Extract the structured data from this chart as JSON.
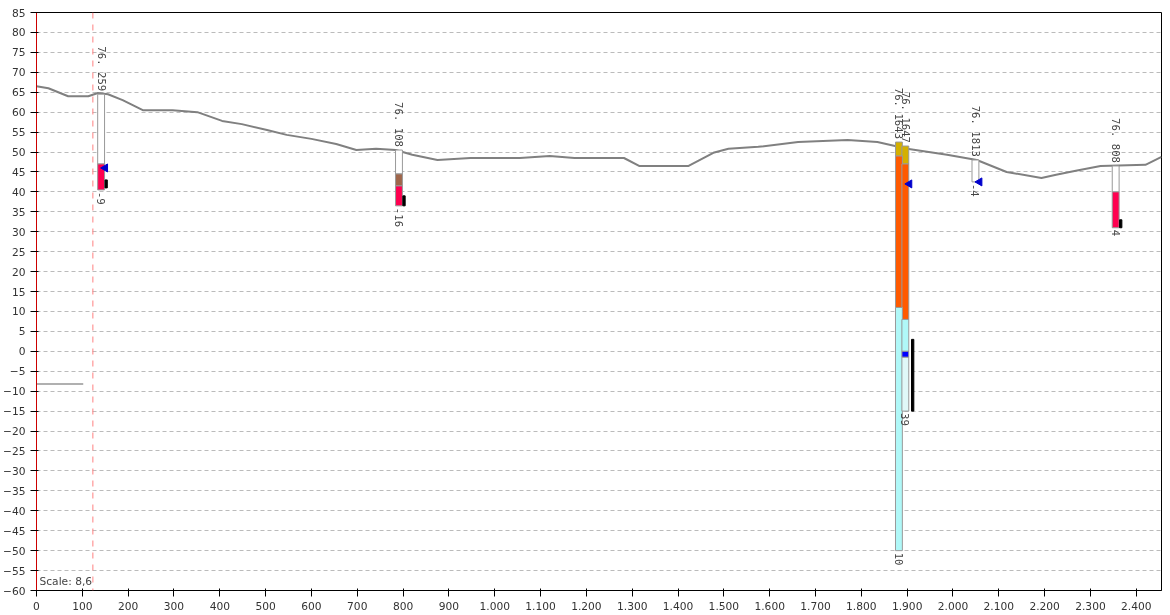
{
  "chart_data": {
    "type": "line",
    "xlim": [
      0,
      2455
    ],
    "ylim": [
      -60,
      85
    ],
    "xticks": [
      0,
      100,
      200,
      300,
      400,
      500,
      600,
      700,
      800,
      900,
      {
        "value": 1000,
        "label": "1.000"
      },
      {
        "value": 1100,
        "label": "1.100"
      },
      {
        "value": 1200,
        "label": "1.200"
      },
      {
        "value": 1300,
        "label": "1.300"
      },
      {
        "value": 1400,
        "label": "1.400"
      },
      {
        "value": 1500,
        "label": "1.500"
      },
      {
        "value": 1600,
        "label": "1.600"
      },
      {
        "value": 1700,
        "label": "1.700"
      },
      {
        "value": 1800,
        "label": "1.800"
      },
      {
        "value": 1900,
        "label": "1.900"
      },
      {
        "value": 2000,
        "label": "2.000"
      },
      {
        "value": 2100,
        "label": "2.100"
      },
      {
        "value": 2200,
        "label": "2.200"
      },
      {
        "value": 2300,
        "label": "2.300"
      },
      {
        "value": 2400,
        "label": "2.400"
      }
    ],
    "yticks": [
      -60,
      -55,
      -50,
      -45,
      -40,
      -35,
      -30,
      -25,
      -20,
      -15,
      -10,
      -5,
      0,
      5,
      10,
      15,
      20,
      25,
      30,
      35,
      40,
      45,
      50,
      55,
      60,
      65,
      70,
      75,
      80,
      85
    ],
    "grid": "y",
    "series": [
      {
        "color": "#808080",
        "x": [
          0,
          26,
          69,
          113,
          134,
          156,
          188,
          232,
          297,
          351,
          405,
          448,
          503,
          546,
          600,
          654,
          698,
          741,
          784,
          820,
          875,
          947,
          1055,
          1120,
          1174,
          1282,
          1315,
          1423,
          1477,
          1510,
          1575,
          1662,
          1770,
          1835,
          1900,
          1987,
          2052,
          2117,
          2193,
          2225,
          2268,
          2322,
          2420,
          2455
        ],
        "values": [
          66.5,
          66,
          64,
          64,
          64.8,
          64.5,
          63,
          60.5,
          60.5,
          60,
          57.8,
          57,
          55.5,
          54.3,
          53.3,
          52,
          50.5,
          50.8,
          50.5,
          49.3,
          48,
          48.5,
          48.5,
          49,
          48.5,
          48.5,
          46.5,
          46.5,
          49.8,
          50.8,
          51.3,
          52.5,
          53,
          52.5,
          50.8,
          49.3,
          48,
          45,
          43.5,
          44.3,
          45.3,
          46.5,
          46.8,
          48.8
        ]
      },
      {
        "color": "#b0b0b0",
        "x": [
          0,
          102
        ],
        "values": [
          -8.2,
          -8.2
        ]
      },
      {
        "type": "bar",
        "x": [
          141,
          791,
          1882,
          1896,
          2049,
          2355
        ],
        "base": [
          64.5,
          50.5,
          52.5,
          51.5,
          48,
          46.5
        ],
        "values": [
          -17.5,
          -6,
          -3.5,
          -4.5,
          -5.5,
          -6.5
        ],
        "colors": [
          "#ffffff",
          "#ffffff",
          "#d4b000",
          "#d4b000",
          "#ffffff",
          "#ffffff"
        ]
      },
      {
        "type": "bar",
        "x": [
          141,
          791,
          1882,
          1896,
          2355
        ],
        "base": [
          47,
          44.5,
          49,
          47,
          40
        ],
        "values": [
          -6.5,
          -3,
          -38,
          -39,
          -9
        ],
        "colors": [
          "#ff0050",
          "#a0664a",
          "#ff5a00",
          "#ff5a00",
          "#ff0050"
        ]
      },
      {
        "type": "bar",
        "x": [
          791,
          1882,
          1896
        ],
        "base": [
          41.5,
          11,
          8
        ],
        "values": [
          -5,
          -61,
          -8
        ],
        "colors": [
          "#ff0050",
          "#b0f8f8",
          "#b0f8f8"
        ]
      },
      {
        "type": "bar",
        "x": [
          1896
        ],
        "base": [
          0
        ],
        "values": [
          -1.5
        ],
        "colors": [
          "#0000ff"
        ]
      },
      {
        "type": "bar",
        "x": [
          1896
        ],
        "base": [
          -1.5
        ],
        "values": [
          -13.5
        ],
        "colors": [
          "#e0f8f8"
        ]
      },
      {
        "type": "bar",
        "color": "#000000",
        "x": [
          152,
          802,
          1912,
          2366
        ],
        "base": [
          41,
          36.5,
          -15,
          31
        ],
        "values": [
          2,
          2.5,
          18,
          2
        ]
      },
      {
        "type": "scatter",
        "marker": "triangle",
        "color": "#0000cc",
        "x": [
          150,
          1905,
          2058
        ],
        "values": [
          46,
          42,
          42.5
        ]
      }
    ],
    "ref_lines": [
      {
        "axis": "x",
        "value": 123,
        "color": "#ff8080",
        "line_style": "dashed"
      }
    ],
    "annotations": [
      {
        "text": "76. 259",
        "x": 141,
        "y": 64.5
      },
      {
        "text": "-9",
        "x": 141,
        "y": 40.5
      },
      {
        "text": "76. 108",
        "x": 791,
        "y": 50.5
      },
      {
        "text": "-16",
        "x": 791,
        "y": 36.5
      },
      {
        "text": "76. 1643",
        "x": 1882,
        "y": 52.5
      },
      {
        "text": "10",
        "x": 1882,
        "y": -50
      },
      {
        "text": "76. 1647",
        "x": 1896,
        "y": 51.5
      },
      {
        "text": "39",
        "x": 1896,
        "y": -15
      },
      {
        "text": "76. 1813",
        "x": 2049,
        "y": 48
      },
      {
        "text": "-4",
        "x": 2049,
        "y": 42.5
      },
      {
        "text": "76. 808",
        "x": 2355,
        "y": 46.5
      },
      {
        "text": "4",
        "x": 2355,
        "y": 31
      },
      "Scale: 8,6"
    ]
  }
}
